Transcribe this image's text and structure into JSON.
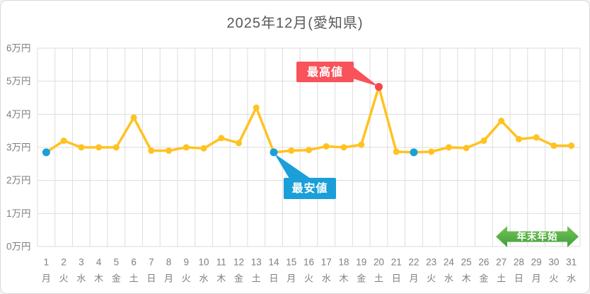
{
  "page": {
    "title": "2025年12月(愛知県)"
  },
  "chart_data": {
    "type": "line",
    "title": "2025年12月(愛知県)",
    "unit": "万円",
    "ylim": [
      0,
      6
    ],
    "y_tick_step": 1,
    "y_tick_suffix": "万円",
    "grid": true,
    "days": [
      1,
      2,
      3,
      4,
      5,
      6,
      7,
      8,
      9,
      10,
      11,
      12,
      13,
      14,
      15,
      16,
      17,
      18,
      19,
      20,
      21,
      22,
      23,
      24,
      25,
      26,
      27,
      28,
      29,
      30,
      31
    ],
    "weekdays": [
      "月",
      "火",
      "水",
      "木",
      "金",
      "土",
      "日",
      "月",
      "火",
      "水",
      "木",
      "金",
      "土",
      "日",
      "月",
      "火",
      "水",
      "木",
      "金",
      "土",
      "日",
      "月",
      "火",
      "水",
      "木",
      "金",
      "土",
      "日",
      "月",
      "火",
      "水"
    ],
    "values": [
      2.85,
      3.2,
      3.0,
      3.0,
      3.0,
      3.9,
      2.9,
      2.9,
      3.0,
      2.97,
      3.28,
      3.13,
      4.2,
      2.85,
      2.9,
      2.92,
      3.03,
      3.0,
      3.08,
      4.83,
      2.87,
      2.85,
      2.87,
      3.0,
      2.98,
      3.2,
      3.8,
      3.25,
      3.3,
      3.05,
      3.05
    ],
    "annotations": {
      "max": {
        "label": "最高値",
        "day": 20,
        "value": 4.83
      },
      "min": {
        "label": "最安値",
        "callout_day": 14,
        "value": 2.85,
        "marked_days": [
          1,
          14,
          22
        ]
      },
      "period": {
        "label": "年末年始",
        "position": "bottom-right"
      }
    },
    "colors": {
      "line": "#FFC220",
      "point": "#FFC220",
      "max_point": "#F4464D",
      "max_box": "#F8525A",
      "min_point": "#1B9FD8",
      "min_box": "#1B9FD8",
      "arrow_top": "#77C455",
      "arrow_bottom": "#3E9E3C",
      "grid": "#DDDDDD",
      "axis_text": "#7F7F7F",
      "title_text": "#595959",
      "callout_text": "#FFFFFF"
    }
  }
}
